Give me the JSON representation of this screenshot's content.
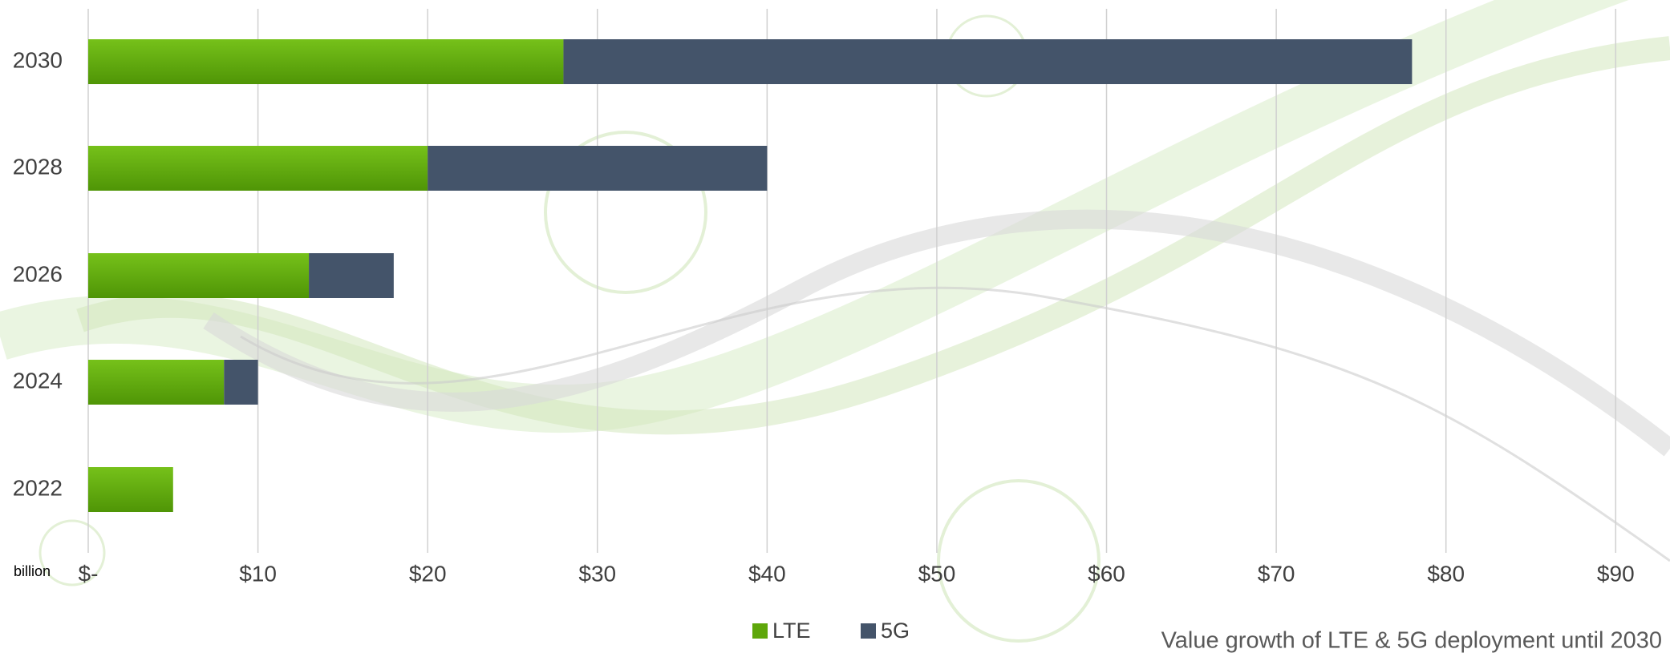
{
  "chart_data": {
    "type": "stacked-barh",
    "caption": "Value growth of LTE & 5G deployment until 2030",
    "x_unit_label": "billion",
    "categories": [
      "2030",
      "2028",
      "2026",
      "2024",
      "2022"
    ],
    "series": [
      {
        "name": "LTE",
        "color": "#5ea70a",
        "values": [
          28,
          20,
          13,
          8,
          5
        ]
      },
      {
        "name": "5G",
        "color": "#44546a",
        "values": [
          50,
          20,
          5,
          2,
          null
        ]
      }
    ],
    "xlim": [
      0,
      93.2
    ],
    "xticks": [
      {
        "value": 0,
        "label": "$-"
      },
      {
        "value": 10,
        "label": "$10"
      },
      {
        "value": 20,
        "label": "$20"
      },
      {
        "value": 30,
        "label": "$30"
      },
      {
        "value": 40,
        "label": "$40"
      },
      {
        "value": 50,
        "label": "$50"
      },
      {
        "value": 60,
        "label": "$60"
      },
      {
        "value": 70,
        "label": "$70"
      },
      {
        "value": 80,
        "label": "$80"
      },
      {
        "value": 90,
        "label": "$90"
      }
    ],
    "grid": true,
    "legend": "bottom"
  }
}
